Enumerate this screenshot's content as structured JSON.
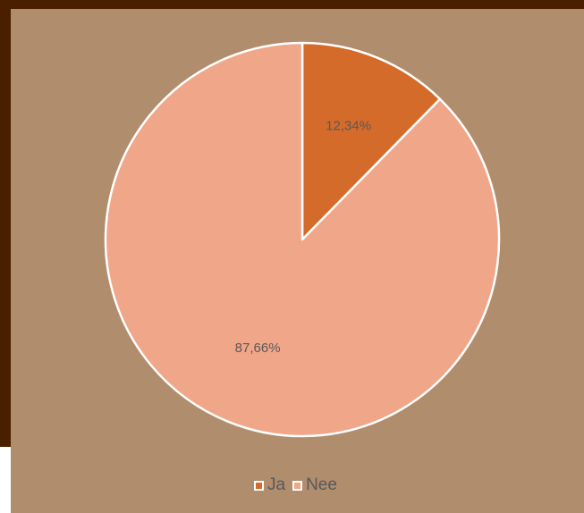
{
  "chart_data": {
    "type": "pie",
    "categories": [
      "Ja",
      "Nee"
    ],
    "values": [
      12.34,
      87.66
    ],
    "data_labels": [
      "12,34%",
      "87,66%"
    ],
    "colors": [
      "#d46b2a",
      "#f0a688"
    ],
    "slice_border_color": "#ffffff",
    "start_angle": "12 o'clock",
    "direction": "clockwise",
    "legend": "bottom"
  },
  "colors": {
    "frame": "#4a1f00",
    "background": "#b08d6d",
    "label_text": "#595959"
  }
}
